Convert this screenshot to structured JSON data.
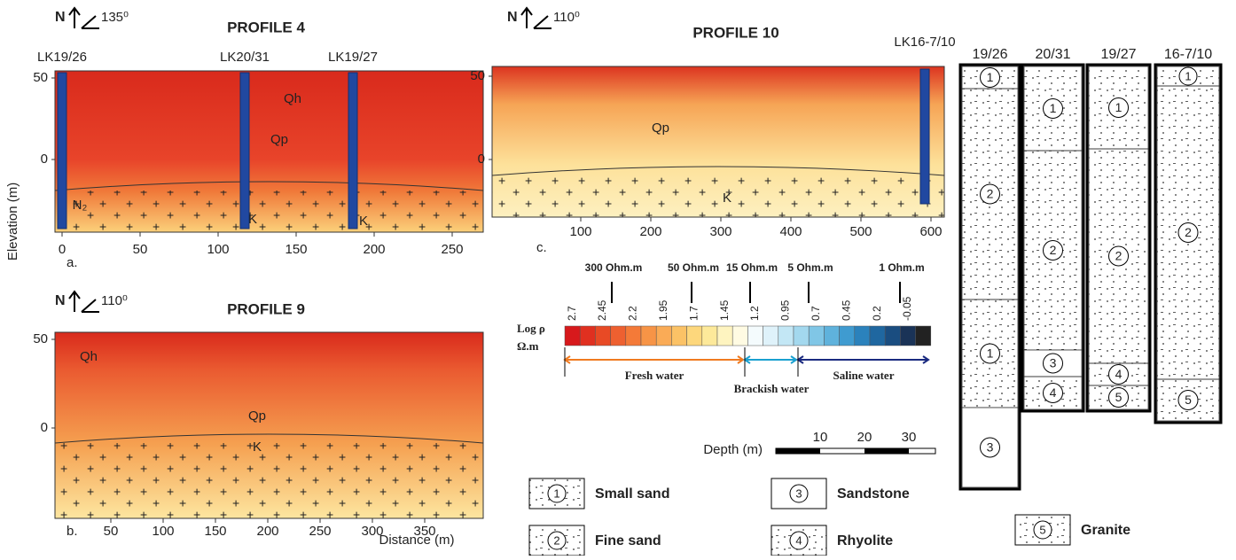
{
  "axis_labels": {
    "y": "Elevation (m)",
    "x": "Distance (m)"
  },
  "panels": [
    {
      "north": "N",
      "azimuth": "135⁰",
      "title": "PROFILE 4",
      "letter": "a.",
      "wells": [
        "LK19/26",
        "LK20/31",
        "LK19/27"
      ],
      "units": [
        "Qh",
        "Qp",
        "N₂",
        "K",
        "K"
      ],
      "yticks": [
        "50",
        "0"
      ],
      "xticks": [
        "0",
        "50",
        "100",
        "150",
        "200",
        "250"
      ]
    },
    {
      "north": "N",
      "azimuth": "110⁰",
      "title": "PROFILE 9",
      "letter": "b.",
      "wells": [],
      "units": [
        "Qh",
        "Qp",
        "K"
      ],
      "yticks": [
        "50",
        "0"
      ],
      "xticks": [
        "50",
        "100",
        "150",
        "200",
        "250",
        "300",
        "350"
      ]
    },
    {
      "north": "N",
      "azimuth": "110⁰",
      "title": "PROFILE 10",
      "letter": "c.",
      "wells": [
        "LK16-7/10"
      ],
      "units": [
        "Qp",
        "K"
      ],
      "yticks": [
        "50",
        "0"
      ],
      "xticks": [
        "100",
        "200",
        "300",
        "400",
        "500",
        "600"
      ]
    }
  ],
  "colorbar": {
    "title": "Log ρ",
    "unit": "Ω.m",
    "resistivity": [
      "300 Ohm.m",
      "50 Ohm.m",
      "15 Ohm.m",
      "5 Ohm.m",
      "1 Ohm.m"
    ],
    "log_values": [
      "2.7",
      "2.45",
      "2.2",
      "1.95",
      "1.7",
      "1.45",
      "1.2",
      "0.95",
      "0.7",
      "0.45",
      "0.2",
      "-0.05"
    ],
    "zones": [
      "Fresh water",
      "Brackish water",
      "Saline water"
    ]
  },
  "depth_scale": {
    "label": "Depth (m)",
    "ticks": [
      "10",
      "20",
      "30"
    ]
  },
  "lithology": [
    {
      "num": "1",
      "label": "Small sand"
    },
    {
      "num": "2",
      "label": "Fine sand"
    },
    {
      "num": "3",
      "label": "Sandstone"
    },
    {
      "num": "4",
      "label": "Rhyolite"
    },
    {
      "num": "5",
      "label": "Granite"
    }
  ],
  "columns": [
    {
      "name": "19/26",
      "layers": [
        "1",
        "2",
        "1",
        "3"
      ]
    },
    {
      "name": "20/31",
      "layers": [
        "1",
        "2",
        "3",
        "4"
      ]
    },
    {
      "name": "19/27",
      "layers": [
        "1",
        "2",
        "4",
        "5"
      ]
    },
    {
      "name": "16-7/10",
      "layers": [
        "1",
        "2",
        "5"
      ]
    }
  ]
}
